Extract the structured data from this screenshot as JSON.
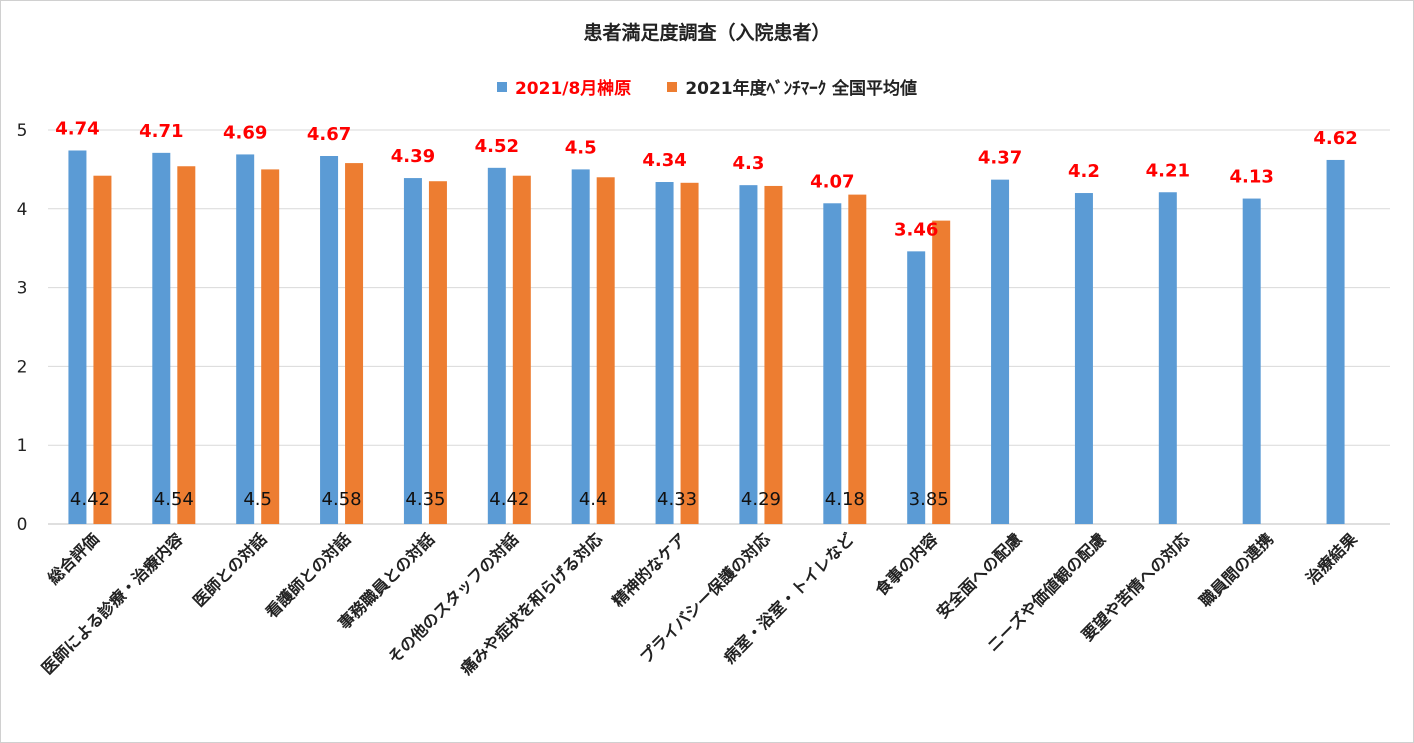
{
  "chart_data": {
    "type": "bar",
    "title": "患者満足度調査（入院患者）",
    "categories": [
      "総合評価",
      "医師による診療・治療内容",
      "医師との対話",
      "看護師との対話",
      "事務職員との対話",
      "その他のスタッフの対話",
      "痛みや症状を和らげる対応",
      "精神的なケア",
      "プライバシー保護の対応",
      "病室・浴室・トイレなど",
      "食事の内容",
      "安全面への配慮",
      "ニーズや価値観の配慮",
      "要望や苦情への対応",
      "職員間の連携",
      "治療結果"
    ],
    "series": [
      {
        "name": "2021/8月榊原",
        "color": "#5b9bd5",
        "label_color": "#ff0000",
        "values": [
          4.74,
          4.71,
          4.69,
          4.67,
          4.39,
          4.52,
          4.5,
          4.34,
          4.3,
          4.07,
          3.46,
          4.37,
          4.2,
          4.21,
          4.13,
          4.62
        ],
        "labels": [
          "4.74",
          "4.71",
          "4.69",
          "4.67",
          "4.39",
          "4.52",
          "4.5",
          "4.34",
          "4.3",
          "4.07",
          "3.46",
          "4.37",
          "4.2",
          "4.21",
          "4.13",
          "4.62"
        ]
      },
      {
        "name": "2021年度ﾍﾞﾝﾁﾏｰｸ 全国平均値",
        "color": "#ed7d31",
        "label_color": "#111111",
        "values": [
          4.42,
          4.54,
          4.5,
          4.58,
          4.35,
          4.42,
          4.4,
          4.33,
          4.29,
          4.18,
          3.85,
          null,
          null,
          null,
          null,
          null
        ],
        "labels": [
          "4.42",
          "4.54",
          "4.5",
          "4.58",
          "4.35",
          "4.42",
          "4.4",
          "4.33",
          "4.29",
          "4.18",
          "3.85",
          null,
          null,
          null,
          null,
          null
        ]
      }
    ],
    "ylim": [
      0,
      5
    ],
    "yticks": [
      "0",
      "1",
      "2",
      "3",
      "4",
      "5"
    ],
    "grid": true,
    "legend": "top-center"
  }
}
